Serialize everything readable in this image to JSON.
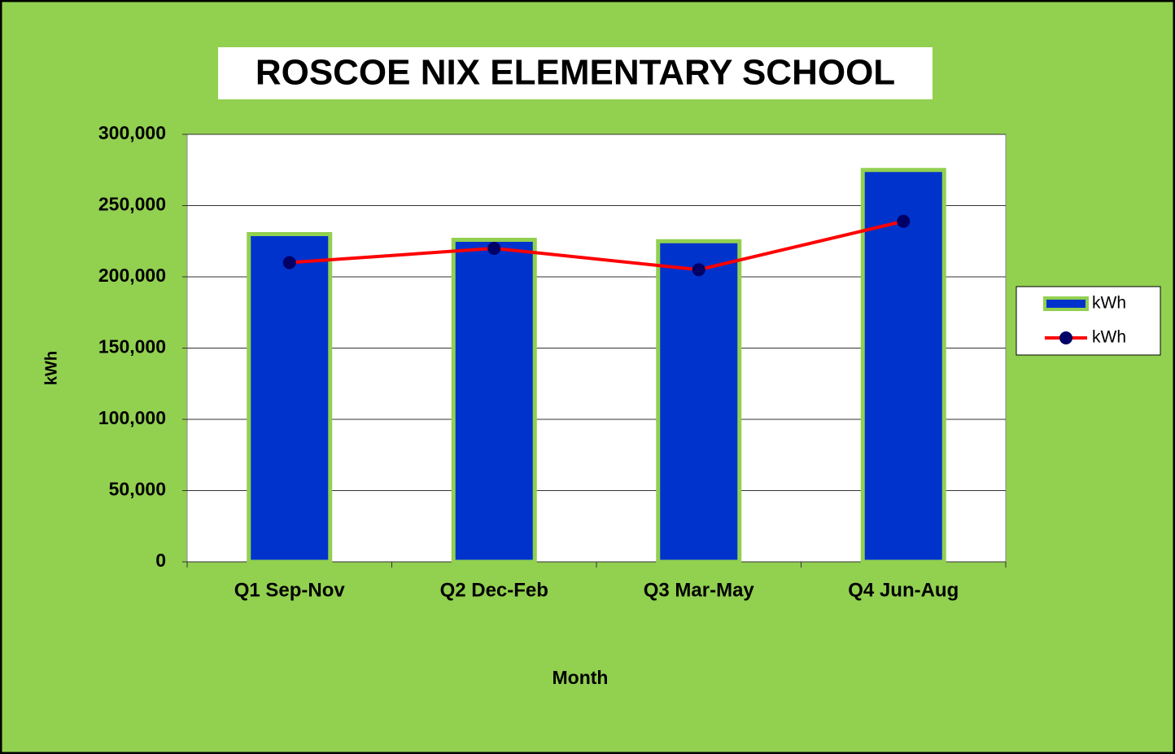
{
  "chart_data": {
    "type": "bar",
    "title": "ROSCOE NIX ELEMENTARY SCHOOL",
    "x_label": "Month",
    "y_label": "kWh",
    "categories": [
      "Q1 Sep-Nov",
      "Q2 Dec-Feb",
      "Q3 Mar-May",
      "Q4 Jun-Aug"
    ],
    "series": [
      {
        "name": "kWh",
        "type": "bar",
        "color": "#0033cc",
        "values": [
          230000,
          226000,
          225000,
          275000
        ]
      },
      {
        "name": "kWh",
        "type": "line",
        "color": "#ff0000",
        "values": [
          210000,
          220000,
          205000,
          239000
        ]
      }
    ],
    "ylim": [
      0,
      300000
    ],
    "yticks": [
      0,
      {
        "value": 50000,
        "label": "50,000"
      },
      {
        "value": 100000,
        "label": "100,000"
      },
      {
        "value": 150000,
        "label": "150,000"
      },
      {
        "value": 200000,
        "label": "200,000"
      },
      {
        "value": 250000,
        "label": "250,000"
      },
      {
        "value": 300000,
        "label": "300,000"
      }
    ],
    "grid": true,
    "legend": "right"
  }
}
